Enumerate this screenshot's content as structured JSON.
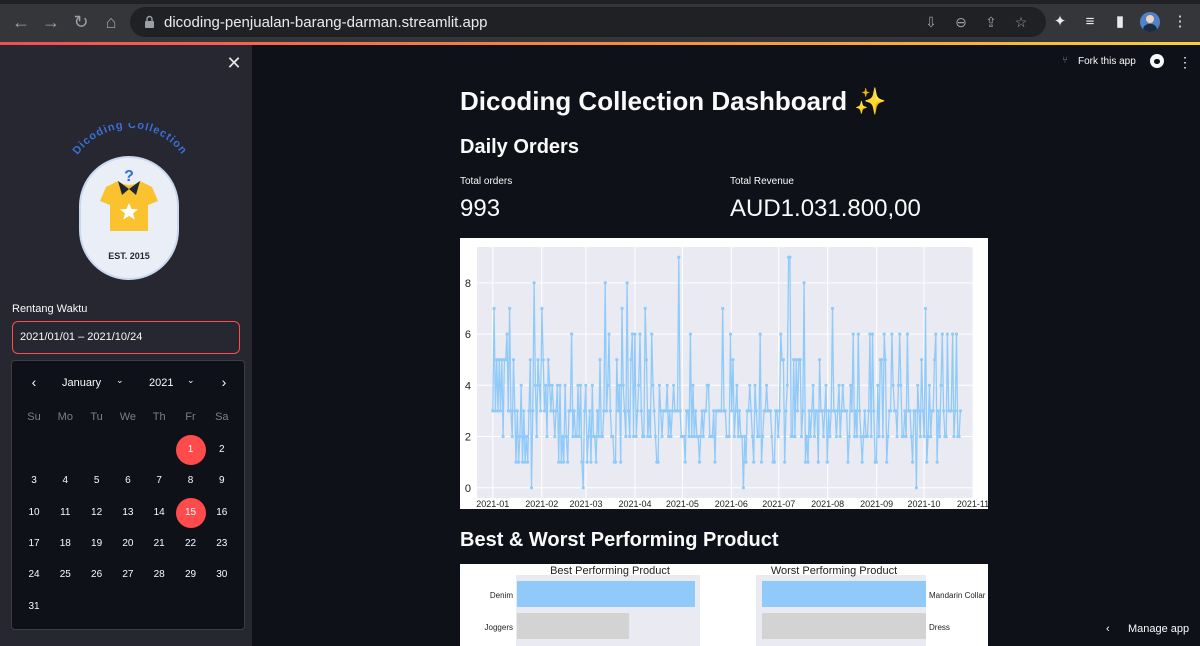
{
  "browser": {
    "url": "dicoding-penjualan-barang-darman.streamlit.app",
    "icons": [
      "back-icon",
      "forward-icon",
      "reload-icon",
      "home-icon",
      "lock-icon",
      "install-icon",
      "zoom-icon",
      "share-icon",
      "bookmark-star-icon",
      "extensions-icon",
      "media-icon",
      "sidebar-icon",
      "profile-avatar",
      "kebab-menu-icon"
    ]
  },
  "sidebar": {
    "logo": {
      "arc_text": "Dicoding Collection",
      "badge_text": "EST. 2015"
    },
    "date_label": "Rentang Waktu",
    "date_value": "2021/01/01 – 2021/10/24",
    "calendar": {
      "month": "January",
      "year": "2021",
      "weekdays": [
        "Su",
        "Mo",
        "Tu",
        "We",
        "Th",
        "Fr",
        "Sa"
      ],
      "first_weekday_index": 5,
      "days_in_month": 31,
      "selected_days": [
        1,
        15
      ]
    }
  },
  "header": {
    "fork_label": "Fork this app",
    "manage_label": "Manage app"
  },
  "main": {
    "title": "Dicoding Collection Dashboard ✨",
    "daily_orders_heading": "Daily Orders",
    "metrics": [
      {
        "label": "Total orders",
        "value": "993"
      },
      {
        "label": "Total Revenue",
        "value": "AUD1.031.800,00"
      }
    ],
    "best_worst_heading": "Best & Worst Performing Product"
  },
  "colors": {
    "accent": "#ff4b4b",
    "line": "#90caf9",
    "highlight_bar": "#90caf9",
    "other_bar": "#d3d3d3"
  },
  "chart_data": [
    {
      "type": "line",
      "title": "",
      "xlabel": "",
      "ylabel": "",
      "x_tick_labels": [
        "2021-01",
        "2021-02",
        "2021-03",
        "2021-04",
        "2021-05",
        "2021-06",
        "2021-07",
        "2021-08",
        "2021-09",
        "2021-10",
        "2021-11"
      ],
      "y_ticks": [
        0,
        2,
        4,
        6,
        8
      ],
      "ylim": [
        -0.4,
        9.4
      ],
      "xlim": [
        "2020-12-22",
        "2021-11-01"
      ],
      "grid": true,
      "series": [
        {
          "x_start": "2021-01-01",
          "x_end": "2021-10-24",
          "values": [
            3,
            7,
            3,
            5,
            3,
            5,
            3,
            5,
            2,
            5,
            5,
            6,
            3,
            7,
            3,
            2,
            5,
            3,
            1,
            3,
            1,
            2,
            4,
            1,
            3,
            1,
            2,
            1,
            3,
            5,
            0,
            3,
            8,
            4,
            2,
            5,
            4,
            3,
            7,
            5,
            3,
            4,
            2,
            5,
            4,
            3,
            4,
            3,
            2,
            3,
            4,
            1,
            4,
            1,
            2,
            1,
            4,
            2,
            1,
            3,
            3,
            6,
            2,
            3,
            2,
            2,
            4,
            2,
            4,
            1,
            0,
            3,
            4,
            1,
            2,
            3,
            1,
            4,
            2,
            2,
            1,
            3,
            2,
            5,
            2,
            2,
            3,
            8,
            3,
            4,
            6,
            3,
            2,
            2,
            1,
            1,
            5,
            3,
            4,
            1,
            7,
            4,
            3,
            2,
            8,
            3,
            2,
            5,
            6,
            2,
            6,
            2,
            3,
            4,
            6,
            3,
            2,
            2,
            7,
            5,
            2,
            3,
            2,
            6,
            4,
            3,
            2,
            1,
            1,
            4,
            3,
            2,
            3,
            3,
            3,
            4,
            2,
            3,
            2,
            3,
            4,
            3,
            3,
            3,
            9,
            3,
            2,
            2,
            2,
            1,
            3,
            3,
            2,
            6,
            2,
            4,
            2,
            3,
            2,
            2,
            1,
            2,
            3,
            2,
            3,
            3,
            4,
            4,
            2,
            2,
            2,
            3,
            1,
            3,
            3,
            3,
            3,
            3,
            7,
            3,
            3,
            2,
            2,
            2,
            6,
            3,
            5,
            2,
            3,
            4,
            2,
            3,
            2,
            2,
            0,
            2,
            1,
            3,
            3,
            4,
            3,
            2,
            1,
            4,
            3,
            2,
            2,
            6,
            1,
            2,
            3,
            3,
            4,
            3,
            3,
            3,
            2,
            1,
            1,
            3,
            3,
            2,
            3,
            6,
            5,
            5,
            1,
            3,
            4,
            9,
            9,
            2,
            2,
            5,
            2,
            5,
            3,
            5,
            5,
            2,
            3,
            8,
            1,
            2,
            1,
            3,
            2,
            3,
            4,
            2,
            3,
            3,
            1,
            5,
            3,
            3,
            2,
            3,
            4,
            1,
            3,
            2,
            3,
            7,
            3,
            3,
            2,
            3,
            4,
            2,
            3,
            4,
            3,
            3,
            3,
            1,
            2,
            4,
            3,
            6,
            2,
            3,
            2,
            6,
            3,
            2,
            1,
            2,
            3,
            2,
            2,
            3,
            6,
            2,
            6,
            3,
            1,
            1,
            4,
            2,
            5,
            5,
            2,
            6,
            5,
            1,
            2,
            3,
            3,
            6,
            4,
            3,
            3,
            2,
            4,
            6,
            4,
            2,
            2,
            3,
            2,
            6,
            3,
            3,
            2,
            1,
            3,
            3,
            0,
            4,
            3,
            2,
            5,
            3,
            2,
            7,
            1,
            2,
            4,
            2,
            3,
            3,
            5,
            6,
            1,
            3,
            2,
            4,
            6,
            3,
            2,
            2,
            6,
            3,
            3,
            3,
            6,
            2,
            3,
            6,
            2,
            2,
            3
          ]
        }
      ]
    },
    {
      "type": "bar",
      "title": "Best Performing Product",
      "orientation": "horizontal",
      "categories": [
        "Denim",
        "Joggers"
      ],
      "values": [
        100,
        63
      ],
      "values_note": "relative lengths estimated from bar extents; no value axis visible"
    },
    {
      "type": "bar",
      "title": "Worst Performing Product",
      "orientation": "horizontal",
      "inverted": true,
      "categories": [
        "Mandarin Collar",
        "Dress"
      ],
      "values": [
        100,
        100
      ],
      "values_note": "relative lengths estimated from bar extents; no value axis visible"
    }
  ]
}
